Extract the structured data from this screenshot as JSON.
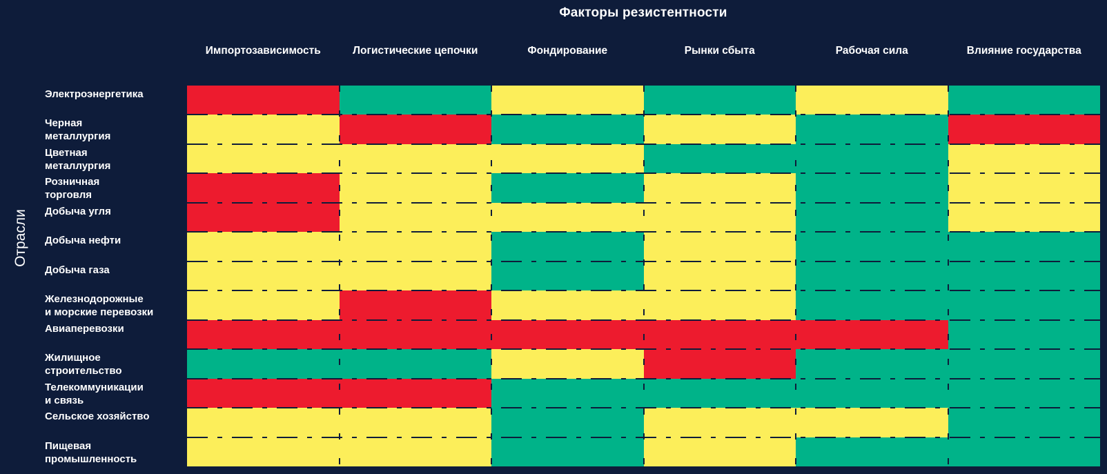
{
  "title": "Факторы резистентности",
  "y_axis_label": "Отрасли",
  "colors": {
    "background": "#0E1C3A",
    "text": "#FFFFFF",
    "red": "#ED1B2E",
    "yellow": "#FCEE5A",
    "green": "#00B389"
  },
  "chart_data": {
    "type": "heatmap",
    "title": "Факторы резистентности",
    "ylabel": "Отрасли",
    "legend_position": "none",
    "grid": "dashed-separators",
    "value_scale": [
      "red",
      "yellow",
      "green"
    ],
    "columns": [
      "Импортозависимость",
      "Логистические цепочки",
      "Фондирование",
      "Рынки сбыта",
      "Рабочая сила",
      "Влияние государства"
    ],
    "rows": [
      {
        "label_lines": [
          "Электроэнергетика"
        ],
        "values": [
          "red",
          "green",
          "yellow",
          "green",
          "yellow",
          "green"
        ]
      },
      {
        "label_lines": [
          "Черная",
          "металлургия"
        ],
        "values": [
          "yellow",
          "red",
          "green",
          "yellow",
          "green",
          "red"
        ]
      },
      {
        "label_lines": [
          "Цветная",
          "металлургия"
        ],
        "values": [
          "yellow",
          "yellow",
          "yellow",
          "green",
          "green",
          "yellow"
        ]
      },
      {
        "label_lines": [
          "Розничная",
          "торговля"
        ],
        "values": [
          "red",
          "yellow",
          "green",
          "yellow",
          "green",
          "yellow"
        ]
      },
      {
        "label_lines": [
          "Добыча угля"
        ],
        "values": [
          "red",
          "yellow",
          "yellow",
          "yellow",
          "green",
          "yellow"
        ]
      },
      {
        "label_lines": [
          "Добыча нефти"
        ],
        "values": [
          "yellow",
          "yellow",
          "green",
          "yellow",
          "green",
          "green"
        ]
      },
      {
        "label_lines": [
          "Добыча газа"
        ],
        "values": [
          "yellow",
          "yellow",
          "green",
          "yellow",
          "green",
          "green"
        ]
      },
      {
        "label_lines": [
          "Железнодорожные",
          "и морские перевозки"
        ],
        "values": [
          "yellow",
          "red",
          "yellow",
          "yellow",
          "green",
          "green"
        ]
      },
      {
        "label_lines": [
          "Авиаперевозки"
        ],
        "values": [
          "red",
          "red",
          "red",
          "red",
          "red",
          "green"
        ]
      },
      {
        "label_lines": [
          "Жилищное",
          "строительство"
        ],
        "values": [
          "green",
          "green",
          "yellow",
          "red",
          "green",
          "green"
        ]
      },
      {
        "label_lines": [
          "Телекоммуникации",
          "и связь"
        ],
        "values": [
          "red",
          "red",
          "green",
          "green",
          "green",
          "green"
        ]
      },
      {
        "label_lines": [
          "Сельское хозяйство"
        ],
        "values": [
          "yellow",
          "yellow",
          "green",
          "yellow",
          "yellow",
          "green"
        ]
      },
      {
        "label_lines": [
          "Пищевая",
          "промышленность"
        ],
        "values": [
          "yellow",
          "yellow",
          "green",
          "yellow",
          "green",
          "green"
        ]
      }
    ]
  }
}
